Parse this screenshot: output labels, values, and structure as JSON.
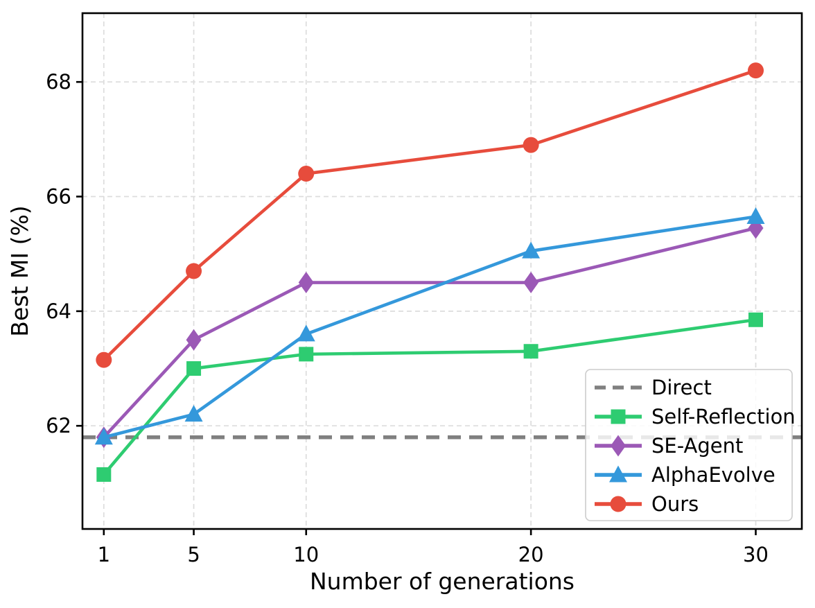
{
  "chart_data": {
    "type": "line",
    "title": "",
    "xlabel": "Number of generations",
    "ylabel": "Best MI (%)",
    "x": [
      1,
      5,
      10,
      20,
      30
    ],
    "x_ticks": [
      "1",
      "5",
      "10",
      "20",
      "30"
    ],
    "y_ticks": [
      "62",
      "64",
      "66",
      "68"
    ],
    "y_tick_values": [
      62,
      64,
      66,
      68
    ],
    "xlim": [
      0.05,
      32.05
    ],
    "ylim": [
      60.2,
      69.2
    ],
    "grid": true,
    "grid_style": "dashed",
    "legend_position": "lower right",
    "baseline": {
      "name": "Direct",
      "value": 61.8,
      "color": "#808080",
      "style": "dashed"
    },
    "series": [
      {
        "name": "Self-Reflection",
        "color": "#2ecc71",
        "marker": "square",
        "values": [
          61.15,
          63.0,
          63.25,
          63.3,
          63.85
        ]
      },
      {
        "name": "SE-Agent",
        "color": "#9b59b6",
        "marker": "diamond",
        "values": [
          61.8,
          63.5,
          64.5,
          64.5,
          65.45
        ]
      },
      {
        "name": "AlphaEvolve",
        "color": "#3498db",
        "marker": "triangle",
        "values": [
          61.8,
          62.2,
          63.6,
          65.05,
          65.65
        ]
      },
      {
        "name": "Ours",
        "color": "#e74c3c",
        "marker": "circle",
        "values": [
          63.15,
          64.7,
          66.4,
          66.9,
          68.2
        ]
      }
    ],
    "legend_entries": [
      "Direct",
      "Self-Reflection",
      "SE-Agent",
      "AlphaEvolve",
      "Ours"
    ],
    "colors": {
      "grid": "#dcdcdc",
      "spine": "#000000",
      "legend_border": "#cccccc",
      "legend_background": "#ffffff",
      "text": "#000000"
    }
  }
}
